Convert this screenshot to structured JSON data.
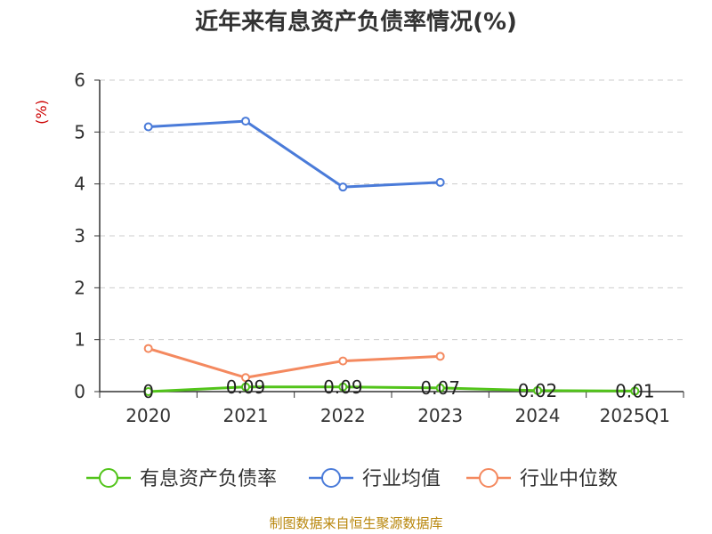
{
  "chart_data": {
    "type": "line",
    "title": "近年来有息资产负债率情况(%)",
    "ylabel": "(%)",
    "xlabel": "",
    "categories": [
      "2020",
      "2021",
      "2022",
      "2023",
      "2024",
      "2025Q1"
    ],
    "ylim": [
      0,
      6
    ],
    "yticks": [
      0,
      1,
      2,
      3,
      4,
      5,
      6
    ],
    "grid": true,
    "legend_position": "bottom",
    "series": [
      {
        "name": "有息资产负债率",
        "color": "#52c41a",
        "values": [
          0,
          0.09,
          0.09,
          0.07,
          0.02,
          0.01
        ],
        "labels": [
          "0",
          "0.09",
          "0.09",
          "0.07",
          "0.02",
          "0.01"
        ]
      },
      {
        "name": "行业均值",
        "color": "#4a7bd9",
        "values": [
          5.1,
          5.21,
          3.94,
          4.03,
          null,
          null
        ]
      },
      {
        "name": "行业中位数",
        "color": "#f4895f",
        "values": [
          0.83,
          0.27,
          0.59,
          0.68,
          null,
          null
        ]
      }
    ],
    "source": "制图数据来自恒生聚源数据库"
  }
}
